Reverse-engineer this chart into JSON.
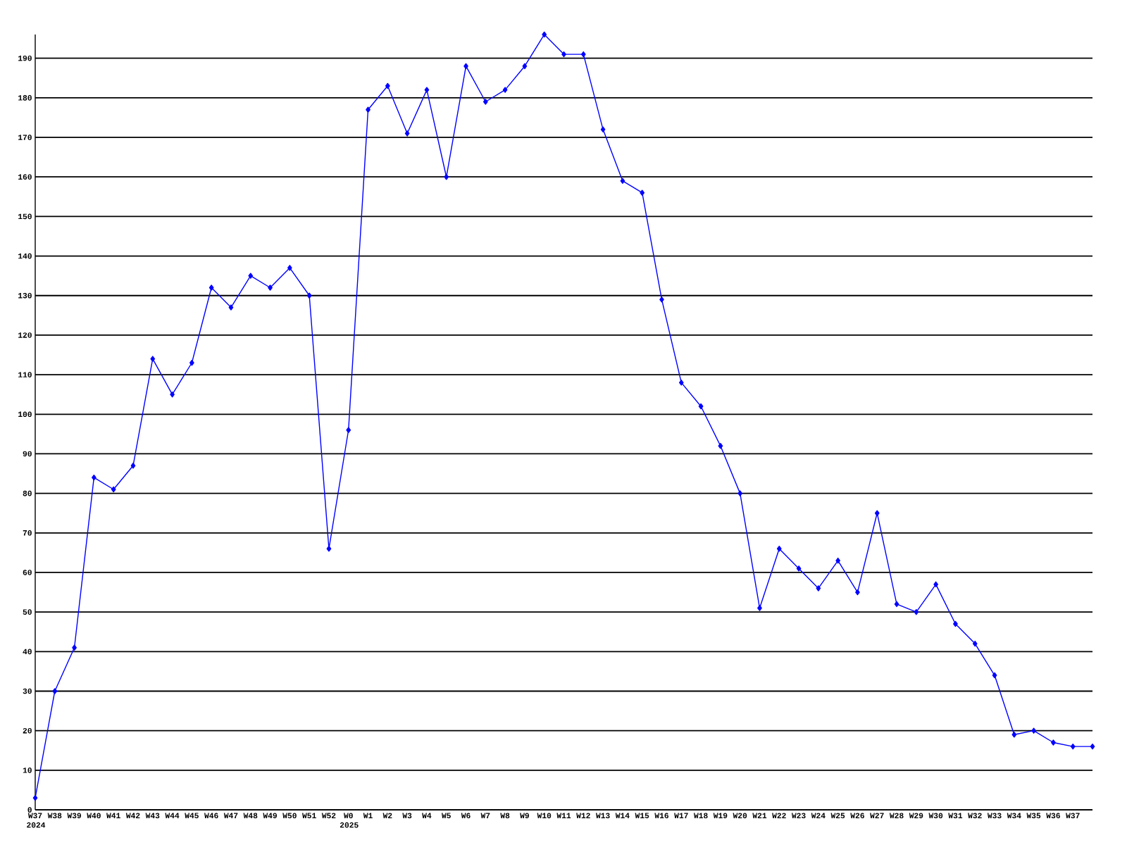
{
  "chart_data": {
    "type": "line",
    "categories": [
      "W37 2024",
      "W38",
      "W39",
      "W40",
      "W41",
      "W42",
      "W43",
      "W44",
      "W45",
      "W46",
      "W47",
      "W48",
      "W49",
      "W50",
      "W51",
      "W52",
      "W0 2025",
      "W1",
      "W2",
      "W3",
      "W4",
      "W5",
      "W6",
      "W7",
      "W8",
      "W9",
      "W10",
      "W11",
      "W12",
      "W13",
      "W14",
      "W15",
      "W16",
      "W17",
      "W18",
      "W19",
      "W20",
      "W21",
      "W22",
      "W23",
      "W24",
      "W25",
      "W26",
      "W27",
      "W28",
      "W29",
      "W30",
      "W31",
      "W32",
      "W33",
      "W34",
      "W35",
      "W36",
      "W37",
      null
    ],
    "values": [
      3,
      30,
      41,
      84,
      81,
      87,
      114,
      105,
      113,
      132,
      127,
      135,
      132,
      137,
      130,
      66,
      96,
      177,
      183,
      171,
      182,
      160,
      188,
      179,
      182,
      188,
      196,
      191,
      191,
      172,
      159,
      156,
      129,
      108,
      102,
      92,
      80,
      51,
      66,
      61,
      56,
      63,
      55,
      75,
      52,
      50,
      57,
      47,
      42,
      34,
      19,
      20,
      17,
      16,
      16
    ],
    "color": "#0000ff",
    "ylim": [
      0,
      196
    ],
    "yticks": [
      0,
      10,
      20,
      30,
      40,
      50,
      60,
      70,
      80,
      90,
      100,
      110,
      120,
      130,
      140,
      150,
      160,
      170,
      180,
      190
    ],
    "grid": "y",
    "marker": "diamond",
    "line_style": "solid"
  }
}
